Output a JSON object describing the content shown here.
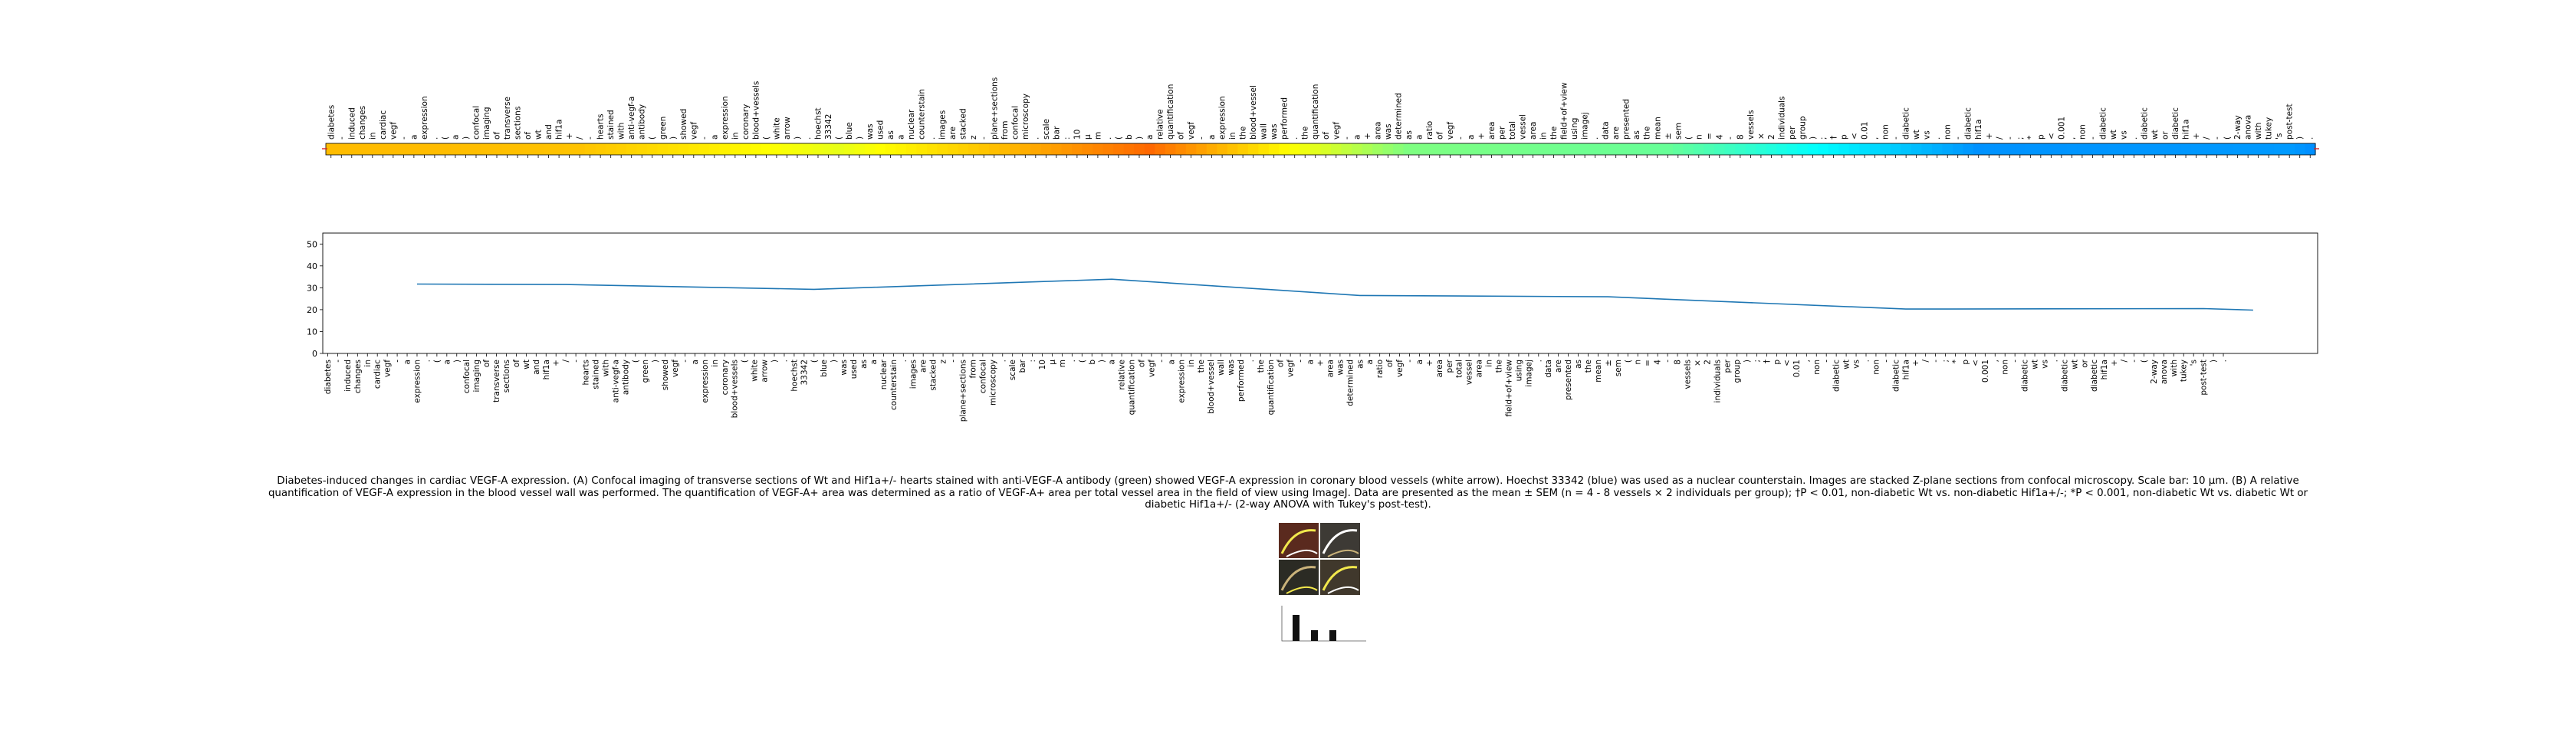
{
  "chart_data": [
    {
      "type": "heatmap",
      "colormap": "jet",
      "tokens": [
        "diabetes",
        "-",
        "induced",
        "changes",
        "in",
        "cardiac",
        "vegf",
        "-",
        "a",
        "expression",
        ".",
        "(",
        "a",
        ")",
        "confocal",
        "imaging",
        "of",
        "transverse",
        "sections",
        "of",
        "wt",
        "and",
        "hif1a",
        "+",
        "/",
        "-",
        "hearts",
        "stained",
        "with",
        "anti-vegf-a",
        "antibody",
        "(",
        "green",
        ")",
        "showed",
        "vegf",
        "-",
        "a",
        "expression",
        "in",
        "coronary",
        "blood+vessels",
        "(",
        "white",
        "arrow",
        ")",
        ".",
        "hoechst",
        "33342",
        "(",
        "blue",
        ")",
        "was",
        "used",
        "as",
        "a",
        "nuclear",
        "counterstain",
        ".",
        "images",
        "are",
        "stacked",
        "z",
        "-",
        "plane+sections",
        "from",
        "confocal",
        "microscopy",
        ".",
        "scale",
        "bar",
        ":",
        "10",
        "μ",
        "m",
        ".",
        "(",
        "b",
        ")",
        "a",
        "relative",
        "quantification",
        "of",
        "vegf",
        "-",
        "a",
        "expression",
        "in",
        "the",
        "blood+vessel",
        "wall",
        "was",
        "performed",
        ".",
        "the",
        "quantification",
        "of",
        "vegf",
        "-",
        "a",
        "+",
        "area",
        "was",
        "determined",
        "as",
        "a",
        "ratio",
        "of",
        "vegf",
        "-",
        "a",
        "+",
        "area",
        "per",
        "total",
        "vessel",
        "area",
        "in",
        "the",
        "field+of+view",
        "using",
        "imagej",
        ".",
        "data",
        "are",
        "presented",
        "as",
        "the",
        "mean",
        "±",
        "sem",
        "(",
        "n",
        "=",
        "4",
        "-",
        "8",
        "vessels",
        "×",
        "2",
        "individuals",
        "per",
        "group",
        ")",
        ";",
        "†",
        "p",
        "<",
        "0.01",
        ",",
        "non",
        "-",
        "diabetic",
        "wt",
        "vs",
        ".",
        "non",
        "-",
        "diabetic",
        "hif1a",
        "+",
        "/",
        "-",
        ";",
        "*",
        "p",
        "<",
        "0.001",
        ",",
        "non",
        "-",
        "diabetic",
        "wt",
        "vs",
        ".",
        "diabetic",
        "wt",
        "or",
        "diabetic",
        "hif1a",
        "+",
        "/",
        "-",
        "(",
        "2-way",
        "anova",
        "with",
        "tukey",
        "'s",
        "post-test",
        ")",
        "."
      ],
      "value_range": [
        0.25,
        0.78
      ]
    },
    {
      "type": "line",
      "x_tokens": [
        "diabetes",
        "-",
        "induced",
        "changes",
        "in",
        "cardiac",
        "vegf",
        "-",
        "a",
        "expression",
        ".",
        "(",
        "a",
        ")",
        "confocal",
        "imaging",
        "of",
        "transverse",
        "sections",
        "of",
        "wt",
        "and",
        "hif1a",
        "+",
        "/",
        "-",
        "hearts",
        "stained",
        "with",
        "anti-vegf-a",
        "antibody",
        "(",
        "green",
        ")",
        "showed",
        "vegf",
        "-",
        "a",
        "expression",
        "in",
        "coronary",
        "blood+vessels",
        "(",
        "white",
        "arrow",
        ")",
        ".",
        "hoechst",
        "33342",
        "(",
        "blue",
        ")",
        "was",
        "used",
        "as",
        "a",
        "nuclear",
        "counterstain",
        ".",
        "images",
        "are",
        "stacked",
        "z",
        "-",
        "plane+sections",
        "from",
        "confocal",
        "microscopy",
        ".",
        "scale",
        "bar",
        ":",
        "10",
        "μ",
        "m",
        ".",
        "(",
        "b",
        ")",
        "a",
        "relative",
        "quantification",
        "of",
        "vegf",
        "-",
        "a",
        "expression",
        "in",
        "the",
        "blood+vessel",
        "wall",
        "was",
        "performed",
        ".",
        "the",
        "quantification",
        "of",
        "vegf",
        "-",
        "a",
        "+",
        "area",
        "was",
        "determined",
        "as",
        "a",
        "ratio",
        "of",
        "vegf",
        "-",
        "a",
        "+",
        "area",
        "per",
        "total",
        "vessel",
        "area",
        "in",
        "the",
        "field+of+view",
        "using",
        "imagej",
        ".",
        "data",
        "are",
        "presented",
        "as",
        "the",
        "mean",
        "±",
        "sem",
        "(",
        "n",
        "=",
        "4",
        "-",
        "8",
        "vessels",
        "×",
        "2",
        "individuals",
        "per",
        "group",
        ")",
        ";",
        "†",
        "p",
        "<",
        "0.01",
        ",",
        "non",
        "-",
        "diabetic",
        "wt",
        "vs",
        ".",
        "non",
        "-",
        "diabetic",
        "hif1a",
        "+",
        "/",
        "-",
        ";",
        "*",
        "p",
        "<",
        "0.001",
        ",",
        "non",
        "-",
        "diabetic",
        "wt",
        "vs",
        ".",
        "diabetic",
        "wt",
        "or",
        "diabetic",
        "hif1a",
        "+",
        "/",
        "-",
        "(",
        "2-way",
        "anova",
        "with",
        "tukey",
        "'s",
        "post-test",
        ")",
        "."
      ],
      "x_tick_labels": [
        "diabetes",
        "-",
        "induced",
        "changes",
        "in",
        "cardiac",
        "vegf",
        "-",
        "a",
        "expression",
        ".",
        "(",
        "a",
        ")",
        "confocal",
        "imaging",
        "of",
        "transverse",
        "sections",
        "of",
        "wt",
        "and",
        "hif1a",
        "+",
        "/",
        "-",
        "hearts",
        "stained",
        "with",
        "anti-vegf-a",
        "antibody",
        "(",
        "green",
        ")",
        "showed",
        "vegf",
        "-",
        "a",
        "expression",
        "in",
        "coronary",
        "blood+vessels",
        "(",
        "white",
        "arrow",
        ")",
        ".",
        "hoechst",
        "33342",
        "(",
        "blue",
        ")",
        "was",
        "used",
        "as",
        "a",
        "nuclear",
        "counterstain",
        ".",
        "images",
        "are",
        "stacked",
        "z",
        "-",
        "plane+sections",
        "from",
        "confocal",
        "microscopy",
        ".",
        "scale",
        "bar",
        ":",
        "10",
        "μ",
        "m",
        ".",
        "(",
        "b",
        ")",
        "a",
        "relative",
        "quantification",
        "of",
        "vegf",
        "-",
        "a",
        "expression",
        "in",
        "the",
        "blood+vessel",
        "wall",
        "was",
        "performed",
        ".",
        "the",
        "quantification",
        "of",
        "vegf",
        "-",
        "a",
        "+",
        "area",
        "was",
        "determined",
        "as",
        "a",
        "ratio",
        "of",
        "vegf",
        "-",
        "a",
        "+",
        "area",
        "per",
        "total",
        "vessel",
        "area",
        "in",
        "the",
        "field+of+view",
        "using",
        "imagej",
        ".",
        "data",
        "are",
        "presented",
        "as",
        "the",
        "mean",
        "±",
        "sem",
        "(",
        "n",
        "=",
        "4",
        "-",
        "8",
        "vessels",
        "×",
        "2",
        "individuals",
        "per",
        "group",
        ")",
        ";",
        "†",
        "p",
        "<",
        "0.01",
        ",",
        "non",
        "-",
        "diabetic",
        "wt",
        "vs",
        ".",
        "non",
        "-",
        "diabetic",
        "hif1a",
        "+",
        "/",
        "-",
        ";",
        "*",
        "p",
        "<",
        "0.001",
        ",",
        "non",
        "-",
        "diabetic",
        "wt",
        "vs",
        ".",
        "diabetic",
        "wt",
        "or",
        "diabetic",
        "hif1a",
        "+",
        "/",
        "-",
        "(",
        "2-way",
        "anova",
        "with",
        "tukey",
        "'s",
        "post-test",
        ")",
        "."
      ],
      "x_domain": [
        -0.5,
        200.5
      ],
      "y_ticks": [
        0,
        10,
        20,
        30,
        40,
        50
      ],
      "ylim": [
        0,
        55
      ],
      "line_color": "#1f77b4",
      "series_anchors": [
        [
          9,
          31.7
        ],
        [
          24,
          31.5
        ],
        [
          49,
          29.3
        ],
        [
          79,
          33.9
        ],
        [
          104,
          26.5
        ],
        [
          129,
          25.9
        ],
        [
          159,
          20.3
        ],
        [
          189,
          20.5
        ],
        [
          194,
          19.8
        ]
      ]
    }
  ],
  "caption": "Diabetes-induced changes in cardiac VEGF-A expression. (A) Confocal imaging of transverse sections of Wt and Hif1a+/- hearts stained with anti-VEGF-A antibody (green) showed VEGF-A expression in coronary blood vessels (white arrow). Hoechst 33342 (blue) was used as a nuclear counterstain. Images are stacked Z-plane sections from confocal microscopy. Scale bar: 10 μm. (B) A relative quantification of VEGF-A expression in the blood vessel wall was performed. The quantification of VEGF-A+ area was determined as a ratio of VEGF-A+ area per total vessel area in the field of view using ImageJ. Data are presented as the mean ± SEM (n = 4 - 8 vessels × 2 individuals per group); †P < 0.01, non-diabetic Wt vs. non-diabetic Hif1a+/-; *P < 0.001, non-diabetic Wt vs. diabetic Wt or diabetic Hif1a+/- (2-way ANOVA with Tukey's post-test).",
  "thumbnail": {
    "panel_colors": [
      "#5a2a1e",
      "#3d3a35",
      "#2b2b24",
      "#40382c"
    ],
    "highlight_colors": [
      "#f2e84c",
      "#ffffff",
      "#c9b27a"
    ],
    "bar_values": [
      0.85,
      0.35,
      0.35
    ]
  }
}
